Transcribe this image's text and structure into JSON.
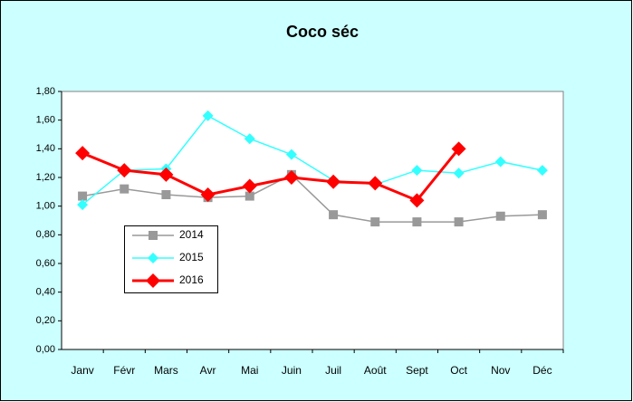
{
  "chart_data": {
    "type": "line",
    "title": "Coco séc",
    "categories": [
      "Janv",
      "Févr",
      "Mars",
      "Avr",
      "Mai",
      "Juin",
      "Juil",
      "Août",
      "Sept",
      "Oct",
      "Nov",
      "Déc"
    ],
    "series": [
      {
        "name": "2014",
        "color": "#999999",
        "marker": "square",
        "line_width": 1.5,
        "values": [
          1.07,
          1.12,
          1.08,
          1.06,
          1.07,
          1.22,
          0.94,
          0.89,
          0.89,
          0.89,
          0.93,
          0.94
        ]
      },
      {
        "name": "2015",
        "color": "#33ffff",
        "marker": "diamond",
        "line_width": 1.5,
        "values": [
          1.01,
          1.25,
          1.26,
          1.63,
          1.47,
          1.36,
          1.18,
          1.15,
          1.25,
          1.23,
          1.31,
          1.25
        ]
      },
      {
        "name": "2016",
        "color": "#ff0000",
        "marker": "diamond",
        "line_width": 3,
        "values": [
          1.37,
          1.25,
          1.22,
          1.08,
          1.14,
          1.2,
          1.17,
          1.16,
          1.04,
          1.4,
          null,
          null
        ]
      }
    ],
    "ylim": [
      0,
      1.8
    ],
    "yticks": [
      {
        "value": 0,
        "label": "0,00"
      },
      {
        "value": 0.2,
        "label": "0,20"
      },
      {
        "value": 0.4,
        "label": "0,40"
      },
      {
        "value": 0.6,
        "label": "0,60"
      },
      {
        "value": 0.8,
        "label": "0,80"
      },
      {
        "value": 1.0,
        "label": "1,00"
      },
      {
        "value": 1.2,
        "label": "1,20"
      },
      {
        "value": 1.4,
        "label": "1,40"
      },
      {
        "value": 1.6,
        "label": "1,60"
      },
      {
        "value": 1.8,
        "label": "1,80"
      }
    ]
  }
}
